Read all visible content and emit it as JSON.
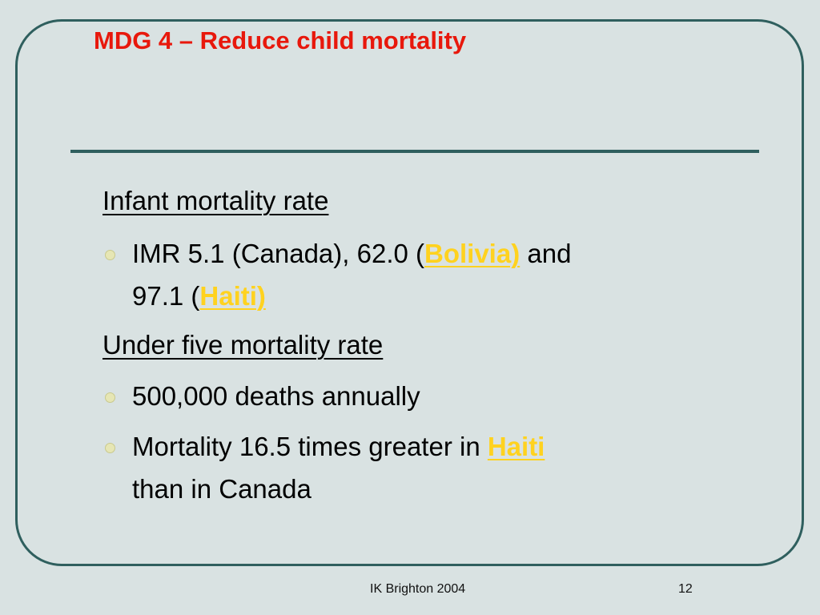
{
  "slide": {
    "title": "MDG 4 – Reduce child mortality",
    "section1": {
      "heading": "Infant mortality rate",
      "bullet1": {
        "part1": "IMR 5.1 (Canada), 62.0 (",
        "highlight1": "Bolivia)",
        "part2": " and",
        "line2_part1": "97.1 (",
        "highlight2": "Haiti)"
      }
    },
    "section2": {
      "heading": "Under five mortality rate",
      "bullet1": {
        "text": "500,000 deaths annually"
      },
      "bullet2": {
        "part1": "Mortality 16.5 times greater in ",
        "highlight": "Haiti",
        "line2": "than in Canada"
      }
    }
  },
  "footer": {
    "center_text": "IK Brighton 2004",
    "page_number": "12"
  },
  "colors": {
    "background": "#d9e2e2",
    "frame": "#2f5f5e",
    "title": "#e8180c",
    "highlight": "#ffd21f",
    "bullet": "#e6e6b4"
  }
}
